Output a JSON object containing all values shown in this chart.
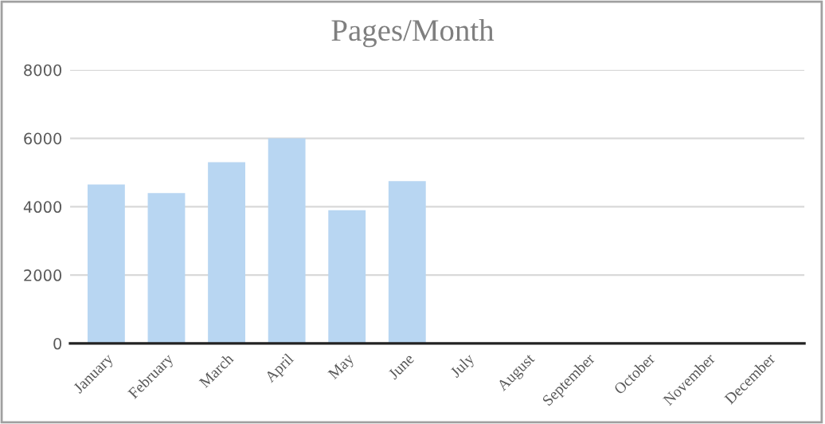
{
  "chart_data": {
    "type": "bar",
    "title": "Pages/Month",
    "categories": [
      "January",
      "February",
      "March",
      "April",
      "May",
      "June",
      "July",
      "August",
      "September",
      "October",
      "November",
      "December"
    ],
    "values": [
      4650,
      4400,
      5300,
      6000,
      3900,
      4750,
      null,
      null,
      null,
      null,
      null,
      null
    ],
    "color": "#b8d6f2",
    "ylim": [
      0,
      8000
    ],
    "yticks": [
      0,
      2000,
      4000,
      6000,
      8000
    ],
    "grid": "y"
  }
}
